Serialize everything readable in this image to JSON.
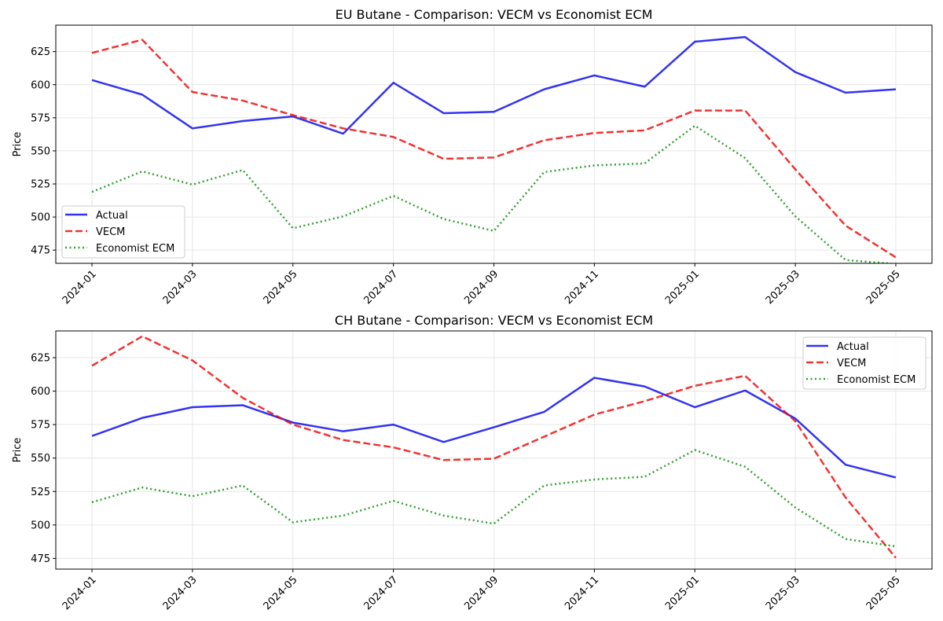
{
  "chart_data": [
    {
      "type": "line",
      "title": "EU Butane - Comparison: VECM vs Economist ECM",
      "xlabel": "",
      "ylabel": "Price",
      "x": [
        "2024-01",
        "2024-02",
        "2024-03",
        "2024-04",
        "2024-05",
        "2024-06",
        "2024-07",
        "2024-08",
        "2024-09",
        "2024-10",
        "2024-11",
        "2024-12",
        "2025-01",
        "2025-02",
        "2025-03",
        "2025-04",
        "2025-05"
      ],
      "x_ticks": [
        "2024-01",
        "2024-03",
        "2024-05",
        "2024-07",
        "2024-09",
        "2024-11",
        "2025-01",
        "2025-03",
        "2025-05"
      ],
      "y_ticks": [
        475,
        500,
        525,
        550,
        575,
        600,
        625
      ],
      "ylim": [
        465,
        645
      ],
      "grid": true,
      "legend_position": "lower-left",
      "series": [
        {
          "name": "Actual",
          "color": "#0000ee",
          "style": "solid",
          "values": [
            603.5,
            592.5,
            567,
            572.5,
            576,
            563,
            601.5,
            578.5,
            579.5,
            596.5,
            607,
            598.5,
            632.5,
            636,
            609.5,
            594,
            596.5
          ]
        },
        {
          "name": "VECM",
          "color": "#ee0000",
          "style": "dashed",
          "values": [
            624,
            634,
            594.5,
            588,
            577,
            567,
            560.5,
            544,
            545,
            558,
            563.5,
            565.5,
            580.5,
            580.5,
            536,
            493.5,
            469.5
          ]
        },
        {
          "name": "Economist ECM",
          "color": "#008800",
          "style": "dotted",
          "values": [
            519,
            534.5,
            524.5,
            535.5,
            491.5,
            500.5,
            516,
            498.5,
            489.5,
            534,
            539,
            540.5,
            569,
            544.5,
            500.5,
            467.5,
            464.5
          ]
        }
      ]
    },
    {
      "type": "line",
      "title": "CH Butane - Comparison: VECM vs Economist ECM",
      "xlabel": "",
      "ylabel": "Price",
      "x": [
        "2024-01",
        "2024-02",
        "2024-03",
        "2024-04",
        "2024-05",
        "2024-06",
        "2024-07",
        "2024-08",
        "2024-09",
        "2024-10",
        "2024-11",
        "2024-12",
        "2025-01",
        "2025-02",
        "2025-03",
        "2025-04",
        "2025-05"
      ],
      "x_ticks": [
        "2024-01",
        "2024-03",
        "2024-05",
        "2024-07",
        "2024-09",
        "2024-11",
        "2025-01",
        "2025-03",
        "2025-05"
      ],
      "y_ticks": [
        475,
        500,
        525,
        550,
        575,
        600,
        625
      ],
      "ylim": [
        467,
        645
      ],
      "grid": true,
      "legend_position": "upper-right",
      "series": [
        {
          "name": "Actual",
          "color": "#0000ee",
          "style": "solid",
          "values": [
            566.5,
            580,
            588,
            589.5,
            576.5,
            570,
            575,
            562,
            573,
            584.5,
            610,
            603.5,
            588,
            600.5,
            579.5,
            545,
            535.5
          ]
        },
        {
          "name": "VECM",
          "color": "#ee0000",
          "style": "dashed",
          "values": [
            619,
            641,
            623,
            595,
            575,
            563.5,
            558,
            548.5,
            549.5,
            566,
            582.5,
            592.5,
            604,
            611.5,
            577.5,
            520.5,
            475.5
          ]
        },
        {
          "name": "Economist ECM",
          "color": "#008800",
          "style": "dotted",
          "values": [
            517,
            528,
            521.5,
            529.5,
            502,
            507,
            518,
            507,
            501,
            529.5,
            534,
            536,
            556,
            543.5,
            513,
            489.5,
            484
          ]
        }
      ]
    }
  ]
}
